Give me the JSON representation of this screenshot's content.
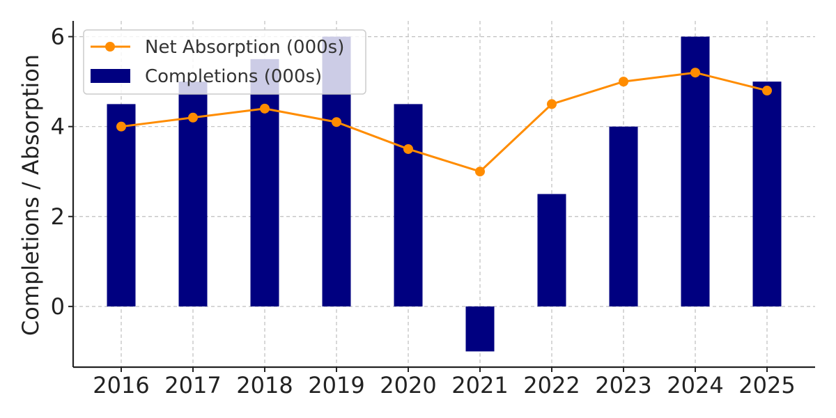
{
  "chart_data": {
    "type": "bar",
    "categories": [
      "2016",
      "2017",
      "2018",
      "2019",
      "2020",
      "2021",
      "2022",
      "2023",
      "2024",
      "2025"
    ],
    "series": [
      {
        "name": "Completions (000s)",
        "type": "bar",
        "color": "#000080",
        "values": [
          4.5,
          5.0,
          5.5,
          6.0,
          4.5,
          -1.0,
          2.5,
          4.0,
          6.0,
          5.0
        ]
      },
      {
        "name": "Net Absorption (000s)",
        "type": "line",
        "color": "#ff8c00",
        "values": [
          4.0,
          4.2,
          4.4,
          4.1,
          3.5,
          3.0,
          4.5,
          5.0,
          5.2,
          4.8
        ]
      }
    ],
    "xlabel": "",
    "ylabel": "Completions / Absorption",
    "ylim": [
      -1.35,
      6.35
    ],
    "yticks": [
      "0",
      "2",
      "4",
      "6"
    ],
    "grid": true,
    "legend_position": "top-left"
  }
}
